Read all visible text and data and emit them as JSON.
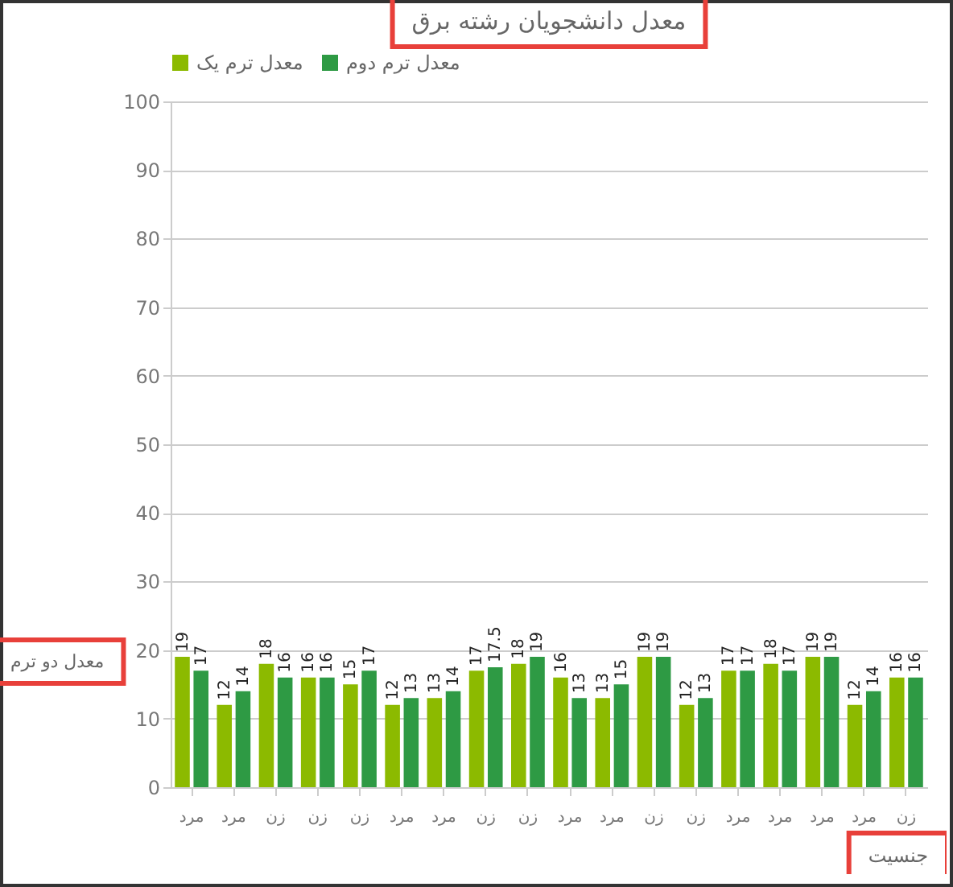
{
  "chart_data": {
    "type": "bar",
    "title": "معدل دانشجویان رشته برق",
    "xlabel": "جنسیت",
    "ylabel": "معدل دو ترم",
    "categories": [
      "مرد",
      "مرد",
      "زن",
      "زن",
      "زن",
      "مرد",
      "مرد",
      "زن",
      "زن",
      "مرد",
      "مرد",
      "زن",
      "زن",
      "مرد",
      "مرد",
      "مرد",
      "مرد",
      "زن"
    ],
    "series": [
      {
        "name": "معدل ترم یک",
        "color": "#8cba00",
        "values": [
          19,
          12,
          18,
          16,
          15,
          12,
          13,
          17,
          18,
          16,
          13,
          19,
          12,
          17,
          18,
          19,
          12,
          16
        ]
      },
      {
        "name": "معدل ترم دوم",
        "color": "#2e9a44",
        "values": [
          17,
          14,
          16,
          16,
          17,
          13,
          14,
          17.5,
          19,
          13,
          15,
          19,
          13,
          17,
          17,
          19,
          14,
          16
        ]
      }
    ],
    "ylim": [
      0,
      100
    ],
    "yticks": [
      0,
      10,
      20,
      30,
      40,
      50,
      60,
      70,
      80,
      90,
      100
    ],
    "grid": "y",
    "legend": "top",
    "data_labels": true
  }
}
